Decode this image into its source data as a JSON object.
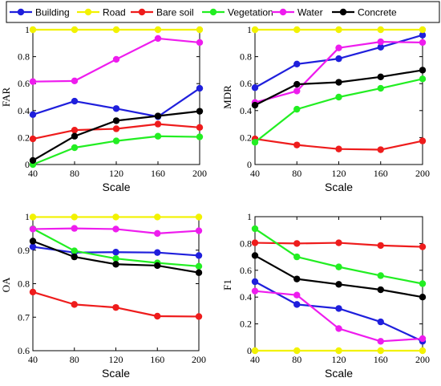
{
  "colors": {
    "Building": "#1f1fdc",
    "Road": "#f2f200",
    "Bare soil": "#ee1c1c",
    "Vegetation": "#22ee22",
    "Water": "#ee1cee",
    "Concrete": "#000000"
  },
  "legend": {
    "placement": "top",
    "items": [
      "Building",
      "Road",
      "Bare soil",
      "Vegetation",
      "Water",
      "Concrete"
    ]
  },
  "chart_data": [
    {
      "type": "line",
      "ylabel": "FAR",
      "xlabel": "Scale",
      "x": [
        40,
        80,
        120,
        160,
        200
      ],
      "xticks": [
        "40",
        "80",
        "120",
        "160",
        "200"
      ],
      "ylim": [
        0,
        1
      ],
      "yticks": [
        "0",
        "0.2",
        "0.4",
        "0.6",
        "0.8",
        "1"
      ],
      "ytick_values": [
        0,
        0.2,
        0.4,
        0.6,
        0.8,
        1
      ],
      "grid": false,
      "series": [
        {
          "name": "Building",
          "values": [
            0.37,
            0.47,
            0.415,
            0.355,
            0.565
          ]
        },
        {
          "name": "Road",
          "values": [
            1.0,
            1.0,
            1.0,
            1.0,
            1.0
          ]
        },
        {
          "name": "Bare soil",
          "values": [
            0.19,
            0.255,
            0.265,
            0.3,
            0.275
          ]
        },
        {
          "name": "Vegetation",
          "values": [
            0.0,
            0.125,
            0.175,
            0.21,
            0.205
          ]
        },
        {
          "name": "Water",
          "values": [
            0.615,
            0.62,
            0.78,
            0.935,
            0.905
          ]
        },
        {
          "name": "Concrete",
          "values": [
            0.03,
            0.21,
            0.325,
            0.36,
            0.395
          ]
        }
      ]
    },
    {
      "type": "line",
      "ylabel": "MDR",
      "xlabel": "Scale",
      "x": [
        40,
        80,
        120,
        160,
        200
      ],
      "xticks": [
        "40",
        "80",
        "120",
        "160",
        "200"
      ],
      "ylim": [
        0,
        1
      ],
      "yticks": [
        "0",
        "0.2",
        "0.4",
        "0.6",
        "0.8",
        "1"
      ],
      "ytick_values": [
        0,
        0.2,
        0.4,
        0.6,
        0.8,
        1
      ],
      "grid": false,
      "series": [
        {
          "name": "Building",
          "values": [
            0.57,
            0.745,
            0.785,
            0.87,
            0.96
          ]
        },
        {
          "name": "Road",
          "values": [
            1.0,
            1.0,
            1.0,
            1.0,
            1.0
          ]
        },
        {
          "name": "Bare soil",
          "values": [
            0.19,
            0.145,
            0.115,
            0.11,
            0.175
          ]
        },
        {
          "name": "Vegetation",
          "values": [
            0.165,
            0.41,
            0.5,
            0.565,
            0.635
          ]
        },
        {
          "name": "Water",
          "values": [
            0.46,
            0.545,
            0.865,
            0.91,
            0.905
          ]
        },
        {
          "name": "Concrete",
          "values": [
            0.44,
            0.595,
            0.61,
            0.65,
            0.7
          ]
        }
      ]
    },
    {
      "type": "line",
      "ylabel": "OA",
      "xlabel": "Scale",
      "x": [
        40,
        80,
        120,
        160,
        200
      ],
      "xticks": [
        "40",
        "80",
        "120",
        "160",
        "200"
      ],
      "ylim": [
        0.6,
        1
      ],
      "yticks": [
        "0.6",
        "0.7",
        "0.8",
        "0.9",
        "1"
      ],
      "ytick_values": [
        0.6,
        0.7,
        0.8,
        0.9,
        1
      ],
      "grid": false,
      "series": [
        {
          "name": "Building",
          "values": [
            0.91,
            0.893,
            0.894,
            0.893,
            0.884
          ]
        },
        {
          "name": "Road",
          "values": [
            0.999,
            0.999,
            0.999,
            0.999,
            0.999
          ]
        },
        {
          "name": "Bare soil",
          "values": [
            0.775,
            0.738,
            0.729,
            0.703,
            0.702
          ]
        },
        {
          "name": "Vegetation",
          "values": [
            0.964,
            0.898,
            0.875,
            0.862,
            0.852
          ]
        },
        {
          "name": "Water",
          "values": [
            0.963,
            0.965,
            0.963,
            0.95,
            0.958
          ]
        },
        {
          "name": "Concrete",
          "values": [
            0.927,
            0.88,
            0.858,
            0.854,
            0.833
          ]
        }
      ]
    },
    {
      "type": "line",
      "ylabel": "F1",
      "xlabel": "Scale",
      "x": [
        40,
        80,
        120,
        160,
        200
      ],
      "xticks": [
        "40",
        "80",
        "120",
        "160",
        "200"
      ],
      "ylim": [
        0,
        1
      ],
      "yticks": [
        "0",
        "0.2",
        "0.4",
        "0.6",
        "0.8",
        "1"
      ],
      "ytick_values": [
        0,
        0.2,
        0.4,
        0.6,
        0.8,
        1
      ],
      "grid": false,
      "series": [
        {
          "name": "Building",
          "values": [
            0.515,
            0.345,
            0.315,
            0.215,
            0.07
          ]
        },
        {
          "name": "Road",
          "values": [
            0.0,
            0.0,
            0.0,
            0.0,
            0.0
          ]
        },
        {
          "name": "Bare soil",
          "values": [
            0.805,
            0.8,
            0.805,
            0.785,
            0.775
          ]
        },
        {
          "name": "Vegetation",
          "values": [
            0.91,
            0.7,
            0.625,
            0.56,
            0.5
          ]
        },
        {
          "name": "Water",
          "values": [
            0.445,
            0.415,
            0.165,
            0.07,
            0.09
          ]
        },
        {
          "name": "Concrete",
          "values": [
            0.71,
            0.535,
            0.495,
            0.455,
            0.4
          ]
        }
      ]
    }
  ]
}
